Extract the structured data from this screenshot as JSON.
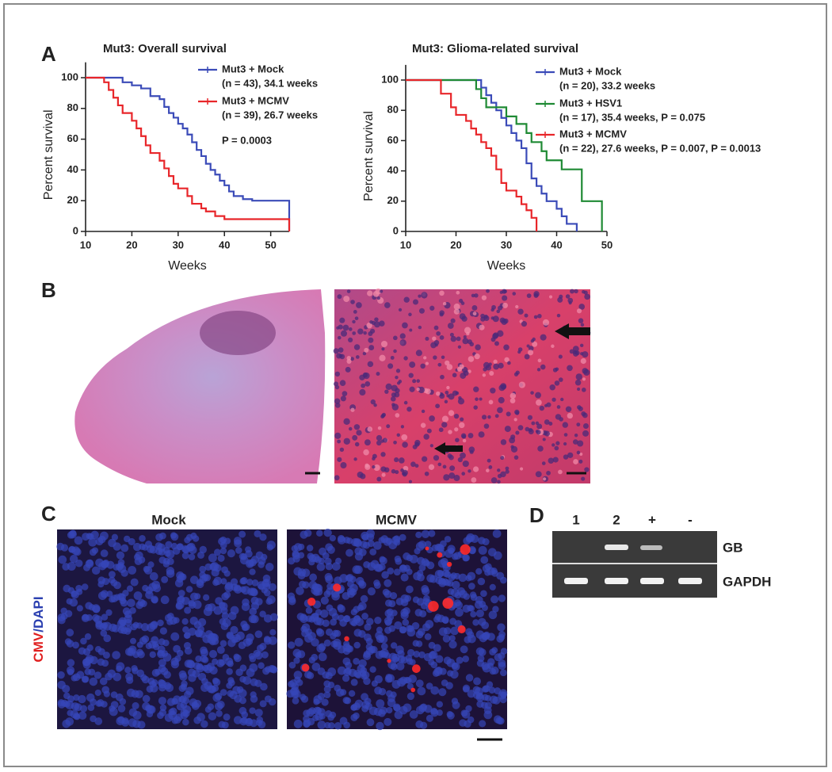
{
  "panel_labels": {
    "a": "A",
    "b": "B",
    "c": "C",
    "d": "D"
  },
  "chart_data": [
    {
      "type": "step",
      "title": "Mut3: Overall survival",
      "xlabel": "Weeks",
      "ylabel": "Percent survival",
      "xlim": [
        10,
        54
      ],
      "ylim": [
        0,
        110
      ],
      "xticks": [
        10,
        20,
        30,
        40,
        50
      ],
      "yticks": [
        0,
        20,
        40,
        60,
        80,
        100
      ],
      "annotation": "P = 0.0003",
      "series": [
        {
          "name": "Mut3 + Mock",
          "detail": "(n = 43), 34.1 weeks",
          "color": "#3b4bb8",
          "x": [
            10,
            18,
            20,
            22,
            24,
            26,
            27,
            28,
            29,
            30,
            31,
            32,
            33,
            34,
            35,
            36,
            37,
            38,
            39,
            40,
            41,
            42,
            44,
            46,
            54
          ],
          "values": [
            100,
            97,
            95,
            93,
            88,
            86,
            81,
            77,
            74,
            70,
            67,
            63,
            58,
            53,
            49,
            44,
            40,
            37,
            33,
            30,
            26,
            23,
            21,
            20,
            0
          ]
        },
        {
          "name": "Mut3 + MCMV",
          "detail": "(n = 39), 26.7 weeks",
          "color": "#e8262a",
          "x": [
            10,
            14,
            15,
            16,
            17,
            18,
            20,
            21,
            22,
            23,
            24,
            26,
            27,
            28,
            29,
            30,
            32,
            33,
            35,
            36,
            38,
            40,
            54
          ],
          "values": [
            100,
            97,
            92,
            87,
            82,
            77,
            72,
            67,
            62,
            56,
            51,
            46,
            41,
            36,
            31,
            28,
            23,
            18,
            15,
            13,
            10,
            8,
            0
          ]
        }
      ]
    },
    {
      "type": "step",
      "title": "Mut3: Glioma-related survival",
      "xlabel": "Weeks",
      "ylabel": "Percent survival",
      "xlim": [
        10,
        50
      ],
      "ylim": [
        0,
        110
      ],
      "xticks": [
        10,
        20,
        30,
        40,
        50
      ],
      "yticks": [
        0,
        20,
        40,
        60,
        80,
        100
      ],
      "series": [
        {
          "name": "Mut3 + Mock",
          "detail": "(n = 20), 33.2 weeks",
          "color": "#3b4bb8",
          "x": [
            10,
            25,
            26,
            27,
            28,
            29,
            30,
            31,
            32,
            33,
            34,
            35,
            36,
            37,
            38,
            40,
            41,
            42,
            44
          ],
          "values": [
            100,
            95,
            90,
            85,
            80,
            75,
            70,
            65,
            60,
            55,
            45,
            35,
            30,
            25,
            20,
            15,
            10,
            5,
            0
          ]
        },
        {
          "name": "Mut3 + HSV1",
          "detail": "(n = 17), 35.4 weeks, P = 0.075",
          "color": "#1f8a34",
          "x": [
            10,
            24,
            25,
            26,
            30,
            32,
            34,
            35,
            37,
            38,
            41,
            45,
            49
          ],
          "values": [
            100,
            94,
            88,
            82,
            76,
            71,
            65,
            59,
            53,
            47,
            41,
            20,
            0
          ]
        },
        {
          "name": "Mut3 + MCMV",
          "detail": "(n = 22), 27.6 weeks, P = 0.007, P = 0.0013",
          "color": "#e8262a",
          "x": [
            10,
            17,
            19,
            20,
            22,
            23,
            24,
            25,
            26,
            27,
            28,
            29,
            30,
            32,
            33,
            34,
            35,
            36
          ],
          "values": [
            100,
            91,
            82,
            77,
            73,
            68,
            64,
            59,
            55,
            50,
            41,
            32,
            27,
            23,
            18,
            14,
            9,
            0
          ]
        }
      ]
    }
  ],
  "panel_c": {
    "mock": "Mock",
    "mcmv": "MCMV",
    "stain_cmv": "CMV",
    "stain_dapi": "/DAPI"
  },
  "panel_d": {
    "lanes": [
      "1",
      "2",
      "+",
      "-"
    ],
    "bands": [
      "GB",
      "GAPDH"
    ]
  }
}
